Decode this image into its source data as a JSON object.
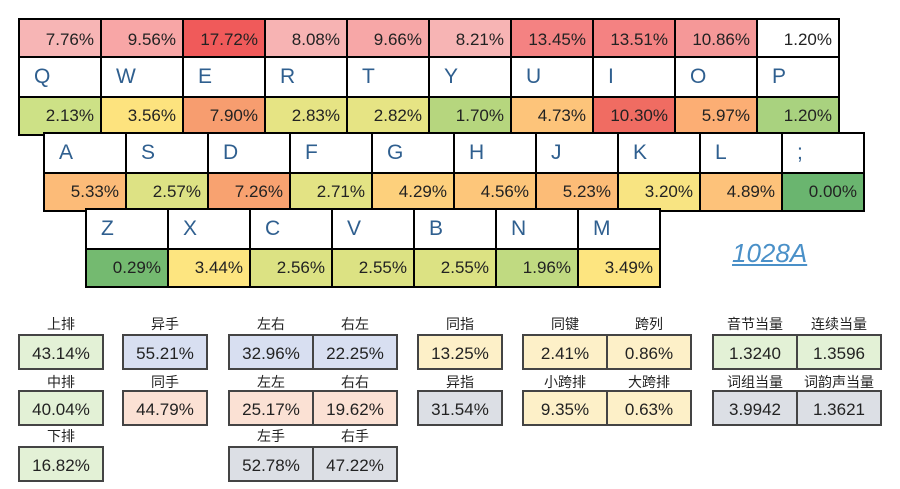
{
  "top_row": [
    "7.76%",
    "9.56%",
    "17.72%",
    "8.08%",
    "9.66%",
    "8.21%",
    "13.45%",
    "13.51%",
    "10.86%",
    "1.20%"
  ],
  "top_colors": [
    "#f7b5b5",
    "#f8a6a6",
    "#f05a5a",
    "#f7b3b3",
    "#f7a7a7",
    "#f7b4b4",
    "#f48282",
    "#f48282",
    "#f59898",
    "#ffffff"
  ],
  "row1": {
    "keys": [
      "Q",
      "W",
      "E",
      "R",
      "T",
      "Y",
      "U",
      "I",
      "O",
      "P"
    ],
    "values": [
      "2.13%",
      "3.56%",
      "7.90%",
      "2.83%",
      "2.82%",
      "1.70%",
      "4.73%",
      "10.30%",
      "5.97%",
      "1.20%"
    ],
    "colors": [
      "#cde186",
      "#fde37e",
      "#f79d6f",
      "#e6e484",
      "#e6e484",
      "#b6d67e",
      "#fdc47a",
      "#f06c62",
      "#fcae74",
      "#a9d27f"
    ]
  },
  "row2": {
    "keys": [
      "A",
      "S",
      "D",
      "F",
      "G",
      "H",
      "J",
      "K",
      "L",
      ";"
    ],
    "values": [
      "5.33%",
      "2.57%",
      "7.26%",
      "2.71%",
      "4.29%",
      "4.56%",
      "5.23%",
      "3.20%",
      "4.89%",
      "0.00%"
    ],
    "colors": [
      "#fcbb78",
      "#dde284",
      "#f8a270",
      "#e3e384",
      "#fdd07c",
      "#fdc67a",
      "#fcbc77",
      "#f8e482",
      "#fdc27a",
      "#6ab56f"
    ]
  },
  "row3": {
    "keys": [
      "Z",
      "X",
      "C",
      "V",
      "B",
      "N",
      "M"
    ],
    "values": [
      "0.29%",
      "3.44%",
      "2.56%",
      "2.55%",
      "2.55%",
      "1.96%",
      "3.49%"
    ],
    "colors": [
      "#74ba70",
      "#fde580",
      "#dce283",
      "#dce283",
      "#dce283",
      "#c0da81",
      "#fde580"
    ]
  },
  "signature": "1028A",
  "stats": {
    "shang_pai": {
      "label": "上排",
      "value": "43.14%"
    },
    "zhong_pai": {
      "label": "中排",
      "value": "40.04%"
    },
    "xia_pai": {
      "label": "下排",
      "value": "16.82%"
    },
    "yi_shou": {
      "label": "异手",
      "value": "55.21%"
    },
    "tong_shou": {
      "label": "同手",
      "value": "44.79%"
    },
    "zuo_you": {
      "label": "左右",
      "value": "32.96%"
    },
    "you_zuo": {
      "label": "右左",
      "value": "22.25%"
    },
    "zuo_zuo": {
      "label": "左左",
      "value": "25.17%"
    },
    "you_you": {
      "label": "右右",
      "value": "19.62%"
    },
    "zuo_shou": {
      "label": "左手",
      "value": "52.78%"
    },
    "you_shou": {
      "label": "右手",
      "value": "47.22%"
    },
    "tong_zhi": {
      "label": "同指",
      "value": "13.25%"
    },
    "yi_zhi": {
      "label": "异指",
      "value": "31.54%"
    },
    "tong_jian": {
      "label": "同键",
      "value": "2.41%"
    },
    "kua_lie": {
      "label": "跨列",
      "value": "0.86%"
    },
    "xiao_kua_pai": {
      "label": "小跨排",
      "value": "9.35%"
    },
    "da_kua_pai": {
      "label": "大跨排",
      "value": "0.63%"
    },
    "yin_jie": {
      "label": "音节当量",
      "value": "1.3240"
    },
    "lian_xu": {
      "label": "连续当量",
      "value": "1.3596"
    },
    "ci_zu": {
      "label": "词组当量",
      "value": "3.9942"
    },
    "ci_yun_sheng": {
      "label": "词韵声当量",
      "value": "1.3621"
    }
  }
}
